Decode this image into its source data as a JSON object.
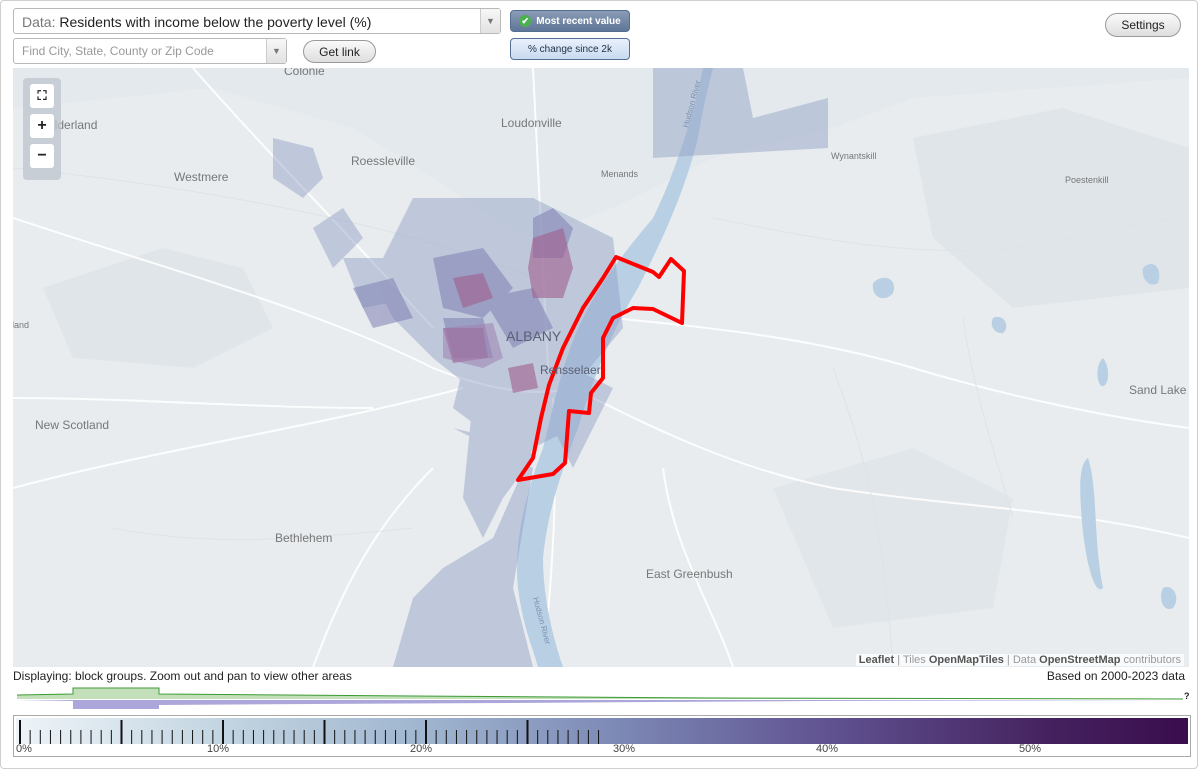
{
  "data_select": {
    "prefix": "Data:",
    "value": "Residents with income below the poverty level (%)"
  },
  "search": {
    "placeholder": "Find City, State, County or Zip Code"
  },
  "get_link_label": "Get link",
  "toggles": {
    "most_recent": "Most recent value",
    "pct_change": "% change since 2k"
  },
  "settings_label": "Settings",
  "map": {
    "place_labels": [
      "Colonie",
      "Guilderland",
      "Loudonville",
      "Roessleville",
      "Westmere",
      "Menands",
      "Wynantskill",
      "Poestenkill",
      "ALBANY",
      "Rensselaer",
      "New Scotland",
      "Bethlehem",
      "East Greenbush",
      "Sand Lake",
      "Guilderland",
      "Hudson River"
    ],
    "attribution": {
      "leaflet": "Leaflet",
      "tiles_prefix": "Tiles",
      "tiles": "OpenMapTiles",
      "data_prefix": "Data",
      "data": "OpenStreetMap",
      "suffix": "contributors"
    }
  },
  "status_text": "Displaying: block groups. Zoom out and pan to view other areas",
  "data_range_text": "Based on 2000-2023 data",
  "histogram": {
    "unknown_marker": "?"
  },
  "legend": {
    "tick_labels": [
      "0%",
      "10%",
      "20%",
      "30%",
      "40%",
      "50%"
    ],
    "colors": {
      "low": "#eef4f8",
      "high": "#3a0d4d",
      "highlight": "#ff0000"
    }
  }
}
